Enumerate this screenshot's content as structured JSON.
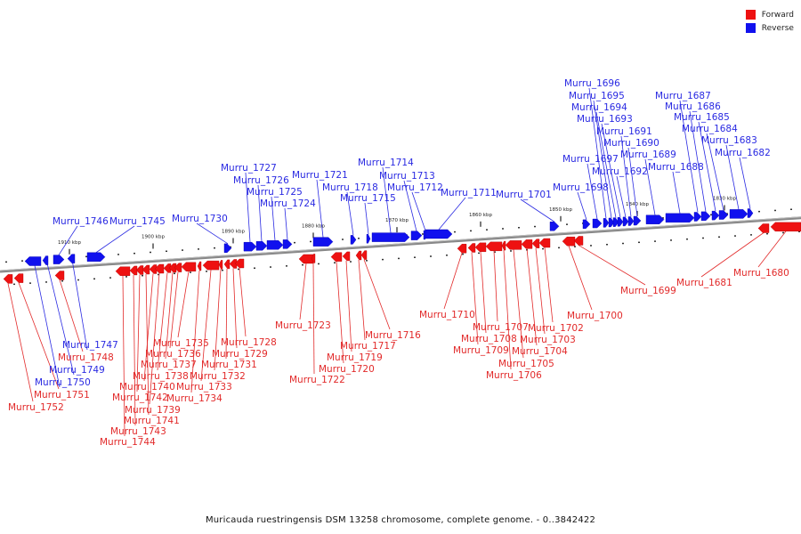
{
  "colors": {
    "forward": "#ee1111",
    "reverse": "#1111ee",
    "forward_line": "#e22a2a",
    "reverse_line": "#2a2ae2",
    "axis": "#888888"
  },
  "legend": [
    {
      "label": "Forward",
      "strand": "forward",
      "color": "#ee1111"
    },
    {
      "label": "Reverse",
      "strand": "reverse",
      "color": "#1111ee"
    }
  ],
  "caption": "Muricauda ruestringensis DSM 13258 chromosome, complete genome. - 0..3842422",
  "ticks": [
    "1910 kbp",
    "1900 kbp",
    "1890 kbp",
    "1880 kbp",
    "1870 kbp",
    "1860 kbp",
    "1850 kbp",
    "1840 kbp",
    "1830 kbp"
  ],
  "genes": [
    {
      "name": "Murru_1752",
      "strand": "forward"
    },
    {
      "name": "Murru_1751",
      "strand": "forward"
    },
    {
      "name": "Murru_1750",
      "strand": "reverse"
    },
    {
      "name": "Murru_1749",
      "strand": "reverse"
    },
    {
      "name": "Murru_1748",
      "strand": "forward"
    },
    {
      "name": "Murru_1747",
      "strand": "reverse"
    },
    {
      "name": "Murru_1746",
      "strand": "reverse"
    },
    {
      "name": "Murru_1745",
      "strand": "reverse"
    },
    {
      "name": "Murru_1744",
      "strand": "forward"
    },
    {
      "name": "Murru_1743",
      "strand": "forward"
    },
    {
      "name": "Murru_1742",
      "strand": "forward"
    },
    {
      "name": "Murru_1741",
      "strand": "forward"
    },
    {
      "name": "Murru_1740",
      "strand": "forward"
    },
    {
      "name": "Murru_1739",
      "strand": "forward"
    },
    {
      "name": "Murru_1738",
      "strand": "forward"
    },
    {
      "name": "Murru_1737",
      "strand": "forward"
    },
    {
      "name": "Murru_1736",
      "strand": "forward"
    },
    {
      "name": "Murru_1735",
      "strand": "forward"
    },
    {
      "name": "Murru_1734",
      "strand": "forward"
    },
    {
      "name": "Murru_1733",
      "strand": "forward"
    },
    {
      "name": "Murru_1732",
      "strand": "forward"
    },
    {
      "name": "Murru_1731",
      "strand": "forward"
    },
    {
      "name": "Murru_1730",
      "strand": "reverse"
    },
    {
      "name": "Murru_1729",
      "strand": "forward"
    },
    {
      "name": "Murru_1728",
      "strand": "forward"
    },
    {
      "name": "Murru_1727",
      "strand": "reverse"
    },
    {
      "name": "Murru_1726",
      "strand": "reverse"
    },
    {
      "name": "Murru_1725",
      "strand": "reverse"
    },
    {
      "name": "Murru_1724",
      "strand": "reverse"
    },
    {
      "name": "Murru_1723",
      "strand": "forward"
    },
    {
      "name": "Murru_1722",
      "strand": "forward"
    },
    {
      "name": "Murru_1721",
      "strand": "reverse"
    },
    {
      "name": "Murru_1720",
      "strand": "forward"
    },
    {
      "name": "Murru_1719",
      "strand": "forward"
    },
    {
      "name": "Murru_1718",
      "strand": "reverse"
    },
    {
      "name": "Murru_1717",
      "strand": "forward"
    },
    {
      "name": "Murru_1716",
      "strand": "forward"
    },
    {
      "name": "Murru_1715",
      "strand": "reverse"
    },
    {
      "name": "Murru_1714",
      "strand": "reverse"
    },
    {
      "name": "Murru_1713",
      "strand": "reverse"
    },
    {
      "name": "Murru_1712",
      "strand": "reverse"
    },
    {
      "name": "Murru_1711",
      "strand": "reverse"
    },
    {
      "name": "Murru_1710",
      "strand": "forward"
    },
    {
      "name": "Murru_1709",
      "strand": "forward"
    },
    {
      "name": "Murru_1708",
      "strand": "forward"
    },
    {
      "name": "Murru_1707",
      "strand": "forward"
    },
    {
      "name": "Murru_1706",
      "strand": "forward"
    },
    {
      "name": "Murru_1705",
      "strand": "forward"
    },
    {
      "name": "Murru_1704",
      "strand": "forward"
    },
    {
      "name": "Murru_1703",
      "strand": "forward"
    },
    {
      "name": "Murru_1702",
      "strand": "forward"
    },
    {
      "name": "Murru_1701",
      "strand": "reverse"
    },
    {
      "name": "Murru_1700",
      "strand": "forward"
    },
    {
      "name": "Murru_1699",
      "strand": "forward"
    },
    {
      "name": "Murru_1698",
      "strand": "reverse"
    },
    {
      "name": "Murru_1697",
      "strand": "reverse"
    },
    {
      "name": "Murru_1696",
      "strand": "reverse"
    },
    {
      "name": "Murru_1695",
      "strand": "reverse"
    },
    {
      "name": "Murru_1694",
      "strand": "reverse"
    },
    {
      "name": "Murru_1693",
      "strand": "reverse"
    },
    {
      "name": "Murru_1692",
      "strand": "reverse"
    },
    {
      "name": "Murru_1691",
      "strand": "reverse"
    },
    {
      "name": "Murru_1690",
      "strand": "reverse"
    },
    {
      "name": "Murru_1689",
      "strand": "reverse"
    },
    {
      "name": "Murru_1688",
      "strand": "reverse"
    },
    {
      "name": "Murru_1687",
      "strand": "reverse"
    },
    {
      "name": "Murru_1686",
      "strand": "reverse"
    },
    {
      "name": "Murru_1685",
      "strand": "reverse"
    },
    {
      "name": "Murru_1684",
      "strand": "reverse"
    },
    {
      "name": "Murru_1683",
      "strand": "reverse"
    },
    {
      "name": "Murru_1682",
      "strand": "reverse"
    },
    {
      "name": "Murru_1681",
      "strand": "forward"
    },
    {
      "name": "Murru_1680",
      "strand": "forward"
    }
  ]
}
